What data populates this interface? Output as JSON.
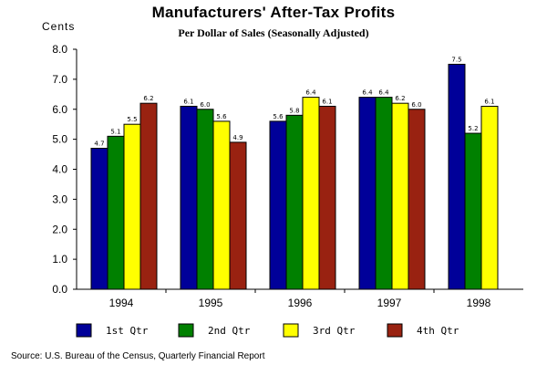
{
  "chart_data": {
    "type": "bar",
    "title": "Manufacturers' After-Tax Profits",
    "subtitle": "Per Dollar of Sales (Seasonally Adjusted)",
    "ylabel": "Cents",
    "ylim": [
      0,
      8
    ],
    "yticks": [
      "0.0",
      "1.0",
      "2.0",
      "3.0",
      "4.0",
      "5.0",
      "6.0",
      "7.0",
      "8.0"
    ],
    "categories": [
      "1994",
      "1995",
      "1996",
      "1997",
      "1998"
    ],
    "series": [
      {
        "name": "1st Qtr",
        "color": "#000099",
        "values": [
          4.7,
          6.1,
          5.6,
          6.4,
          7.5
        ],
        "labels": [
          "4.7",
          "6.1",
          "5.6",
          "6.4",
          "7.5"
        ]
      },
      {
        "name": "2nd Qtr",
        "color": "#008000",
        "values": [
          5.1,
          6.0,
          5.8,
          6.4,
          5.2
        ],
        "labels": [
          "5.1",
          "6.0",
          "5.8",
          "6.4",
          "5.2"
        ]
      },
      {
        "name": "3rd Qtr",
        "color": "#ffff00",
        "values": [
          5.5,
          5.6,
          6.4,
          6.2,
          6.1
        ],
        "labels": [
          "5.5",
          "5.6",
          "6.4",
          "6.2",
          "6.1"
        ]
      },
      {
        "name": "4th Qtr",
        "color": "#992211",
        "values": [
          6.2,
          4.9,
          6.1,
          6.0,
          null
        ],
        "labels": [
          "6.2",
          "4.9",
          "6.1",
          "6.0",
          ""
        ]
      }
    ],
    "grid": false,
    "legend_position": "bottom"
  },
  "source": "Source: U.S. Bureau of the Census, Quarterly Financial Report"
}
